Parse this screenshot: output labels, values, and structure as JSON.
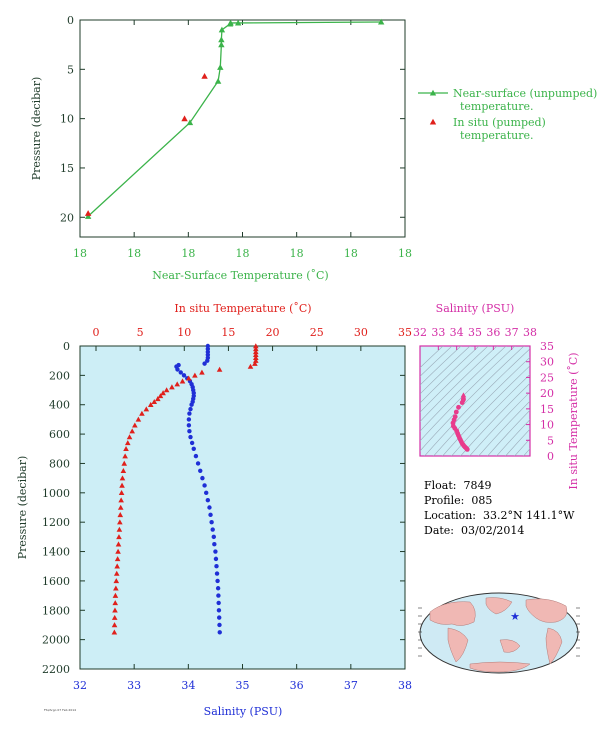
{
  "colors": {
    "green": "#3bb34a",
    "red": "#e0201c",
    "blue": "#1f2fd6",
    "magenta": "#d42ea6",
    "pink": "#e83c8c",
    "axis_dark": "#1f3b2a",
    "panel_fill": "#cdeef6",
    "land": "#f0b8b4",
    "ocean": "#cfeaf4"
  },
  "info": {
    "float_label": "Float:",
    "float_value": "7849",
    "profile_label": "Profile:",
    "profile_value": "085",
    "location_label": "Location:",
    "location_value": "33.2°N  141.1°W",
    "date_label": "Date:",
    "date_value": "03/02/2014"
  },
  "footer": "FSI/Argo 07 Feb 2014",
  "chart_data": [
    {
      "type": "line",
      "panel": "near-surface",
      "xlabel": "Near-Surface Temperature (˚C)",
      "ylabel": "Pressure (decibar)",
      "x_tick_labels": [
        "18",
        "18",
        "18",
        "18",
        "18",
        "18",
        "18"
      ],
      "x_range": [
        18.125,
        18.185
      ],
      "y_ticks": [
        0,
        5,
        10,
        15,
        20
      ],
      "ylim": [
        0,
        22
      ],
      "y_inverted": true,
      "legend": {
        "placement": "right",
        "entries": [
          "Near-surface (unpumped) temperature.",
          "In situ (pumped) temperature."
        ]
      },
      "series": [
        {
          "name": "Near-surface (unpumped) temperature.",
          "color": "#3bb34a",
          "marker": "triangle",
          "line": true,
          "x": [
            18.1806,
            18.1542,
            18.1528,
            18.1527,
            18.1512,
            18.1511,
            18.1511,
            18.1509,
            18.1505,
            18.1453,
            18.1265
          ],
          "y": [
            0.2,
            0.3,
            0.3,
            0.4,
            1.0,
            2.0,
            2.5,
            4.8,
            6.2,
            10.4,
            19.9
          ]
        },
        {
          "name": "In situ (pumped) temperature.",
          "color": "#e0201c",
          "marker": "triangle",
          "line": false,
          "x": [
            18.148,
            18.1443,
            18.1265
          ],
          "y": [
            5.7,
            10.0,
            19.6
          ]
        }
      ]
    },
    {
      "type": "scatter",
      "panel": "profile",
      "ylabel": "Pressure (decibar)",
      "top_axis_label": "In situ Temperature (˚C)",
      "top_axis_ticks": [
        0,
        5,
        10,
        15,
        20,
        25,
        30,
        35
      ],
      "bottom_axis_label": "Salinity (PSU)",
      "bottom_axis_ticks": [
        32,
        33,
        34,
        35,
        36,
        37,
        38
      ],
      "y_ticks": [
        0,
        200,
        400,
        600,
        800,
        1000,
        1200,
        1400,
        1600,
        1800,
        2000,
        2200
      ],
      "ylim": [
        0,
        2200
      ],
      "y_inverted": true,
      "temperature": {
        "name": "In situ Temperature",
        "color": "#e0201c",
        "marker": "triangle",
        "pressure": [
          0,
          20,
          40,
          60,
          80,
          100,
          120,
          140,
          160,
          180,
          200,
          220,
          240,
          260,
          280,
          300,
          320,
          340,
          360,
          380,
          400,
          430,
          460,
          500,
          540,
          580,
          620,
          660,
          700,
          750,
          800,
          850,
          900,
          950,
          1000,
          1050,
          1100,
          1150,
          1200,
          1250,
          1300,
          1350,
          1400,
          1450,
          1500,
          1550,
          1600,
          1650,
          1700,
          1750,
          1800,
          1850,
          1900,
          1950
        ],
        "temp": [
          18.1,
          18.1,
          18.1,
          18.1,
          18.1,
          18.1,
          18.0,
          17.5,
          14.0,
          12.0,
          11.2,
          10.5,
          9.8,
          9.2,
          8.6,
          8.0,
          7.6,
          7.3,
          7.0,
          6.6,
          6.2,
          5.7,
          5.2,
          4.8,
          4.4,
          4.1,
          3.8,
          3.6,
          3.4,
          3.3,
          3.2,
          3.1,
          3.0,
          2.95,
          2.9,
          2.85,
          2.8,
          2.75,
          2.7,
          2.65,
          2.6,
          2.55,
          2.5,
          2.45,
          2.4,
          2.35,
          2.3,
          2.25,
          2.2,
          2.18,
          2.15,
          2.12,
          2.1,
          2.08
        ]
      },
      "salinity": {
        "name": "Salinity",
        "color": "#1f2fd6",
        "marker": "circle",
        "pressure": [
          0,
          20,
          40,
          60,
          80,
          100,
          120,
          130,
          140,
          160,
          180,
          200,
          220,
          240,
          260,
          280,
          300,
          320,
          340,
          360,
          380,
          400,
          430,
          460,
          500,
          540,
          580,
          620,
          660,
          700,
          750,
          800,
          850,
          900,
          950,
          1000,
          1050,
          1100,
          1150,
          1200,
          1250,
          1300,
          1350,
          1400,
          1450,
          1500,
          1550,
          1600,
          1650,
          1700,
          1750,
          1800,
          1850,
          1900,
          1950
        ],
        "sal": [
          34.36,
          34.36,
          34.36,
          34.36,
          34.36,
          34.35,
          34.3,
          33.82,
          33.78,
          33.8,
          33.86,
          33.92,
          33.98,
          34.03,
          34.06,
          34.08,
          34.09,
          34.1,
          34.1,
          34.09,
          34.08,
          34.06,
          34.04,
          34.02,
          34.01,
          34.01,
          34.02,
          34.04,
          34.07,
          34.1,
          34.14,
          34.18,
          34.22,
          34.26,
          34.3,
          34.33,
          34.36,
          34.39,
          34.41,
          34.43,
          34.45,
          34.47,
          34.48,
          34.5,
          34.51,
          34.52,
          34.53,
          34.54,
          34.55,
          34.555,
          34.56,
          34.565,
          34.57,
          34.575,
          34.58
        ]
      }
    },
    {
      "type": "scatter",
      "panel": "T-S diagram",
      "top_axis_label": "Salinity (PSU)",
      "top_axis_ticks": [
        32,
        33,
        34,
        35,
        36,
        37,
        38
      ],
      "right_axis_label": "In situ Temperature (˚C)",
      "right_axis_ticks": [
        0,
        5,
        10,
        15,
        20,
        25,
        30,
        35
      ],
      "xlim": [
        32,
        38
      ],
      "ylim": [
        0,
        35
      ],
      "color": "#e83c8c",
      "sal": [
        34.37,
        34.36,
        34.3,
        34.1,
        33.98,
        33.92,
        33.86,
        33.8,
        33.82,
        33.9,
        34.0,
        34.05,
        34.1,
        34.15,
        34.2,
        34.25,
        34.3,
        34.35,
        34.4,
        34.45,
        34.5,
        34.55,
        34.58
      ],
      "temp": [
        18.1,
        17.8,
        17.0,
        15.5,
        14.0,
        12.5,
        11.5,
        10.5,
        9.5,
        8.8,
        8.0,
        7.2,
        6.5,
        5.8,
        5.2,
        4.6,
        4.0,
        3.6,
        3.2,
        2.9,
        2.6,
        2.3,
        2.1
      ]
    },
    {
      "type": "map",
      "panel": "location",
      "marker_lat": 33.2,
      "marker_lon": -141.1,
      "marker_color": "#1f2fd6"
    }
  ]
}
